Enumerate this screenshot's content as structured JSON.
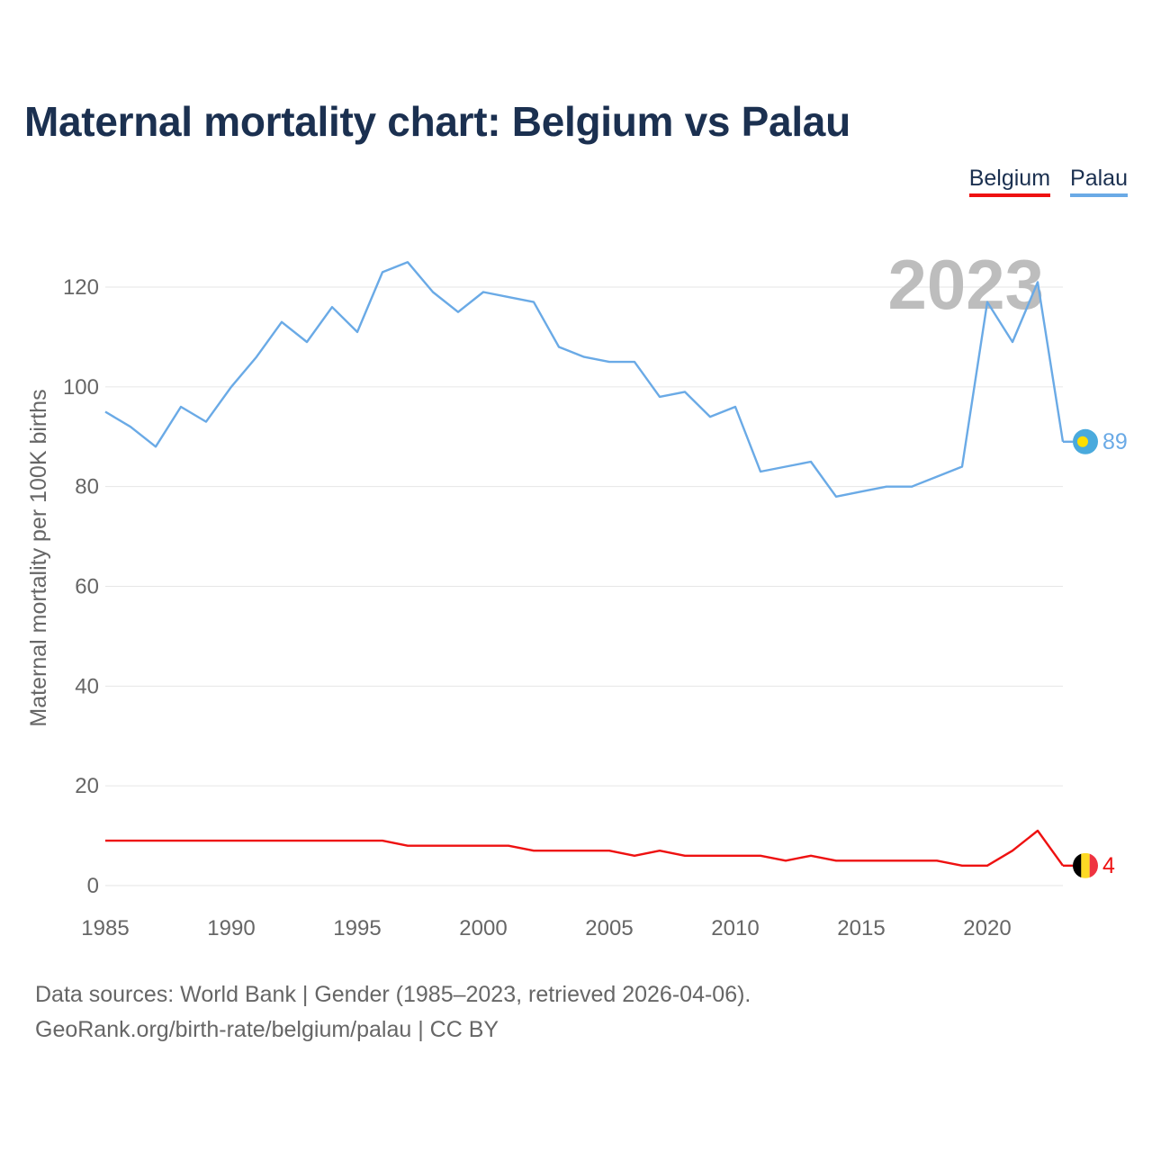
{
  "title": "Maternal mortality chart: Belgium vs Palau",
  "legend": {
    "belgium": "Belgium",
    "palau": "Palau"
  },
  "footer": {
    "line1": "Data sources: World Bank | Gender (1985–2023, retrieved 2026-04-06).",
    "line2": "GeoRank.org/birth-rate/belgium/palau | CC BY"
  },
  "colors": {
    "belgium": "#ee1111",
    "palau": "#6aaae6",
    "title": "#1b3050"
  },
  "chart_data": {
    "type": "line",
    "title": "Maternal mortality chart: Belgium vs Palau",
    "xlabel": "",
    "ylabel": "Maternal mortality per 100K births",
    "year_label": "2023",
    "xlim": [
      1985,
      2023
    ],
    "ylim": [
      0,
      120
    ],
    "x_ticks": [
      1985,
      1990,
      1995,
      2000,
      2005,
      2010,
      2015,
      2020
    ],
    "y_ticks": [
      0,
      20,
      40,
      60,
      80,
      100,
      120
    ],
    "x": [
      1985,
      1986,
      1987,
      1988,
      1989,
      1990,
      1991,
      1992,
      1993,
      1994,
      1995,
      1996,
      1997,
      1998,
      1999,
      2000,
      2001,
      2002,
      2003,
      2004,
      2005,
      2006,
      2007,
      2008,
      2009,
      2010,
      2011,
      2012,
      2013,
      2014,
      2015,
      2016,
      2017,
      2018,
      2019,
      2020,
      2021,
      2022,
      2023
    ],
    "series": [
      {
        "name": "Palau",
        "color": "#6aaae6",
        "end_label": "89",
        "values": [
          95,
          92,
          88,
          96,
          93,
          100,
          106,
          113,
          109,
          116,
          111,
          123,
          125,
          119,
          115,
          119,
          118,
          117,
          108,
          106,
          105,
          105,
          98,
          99,
          94,
          96,
          83,
          84,
          85,
          78,
          79,
          80,
          80,
          82,
          84,
          117,
          109,
          121,
          89
        ]
      },
      {
        "name": "Belgium",
        "color": "#ee1111",
        "end_label": "4",
        "values": [
          9,
          9,
          9,
          9,
          9,
          9,
          9,
          9,
          9,
          9,
          9,
          9,
          8,
          8,
          8,
          8,
          8,
          7,
          7,
          7,
          7,
          6,
          7,
          6,
          6,
          6,
          6,
          5,
          6,
          5,
          5,
          5,
          5,
          5,
          4,
          4,
          7,
          11,
          4
        ]
      }
    ]
  }
}
